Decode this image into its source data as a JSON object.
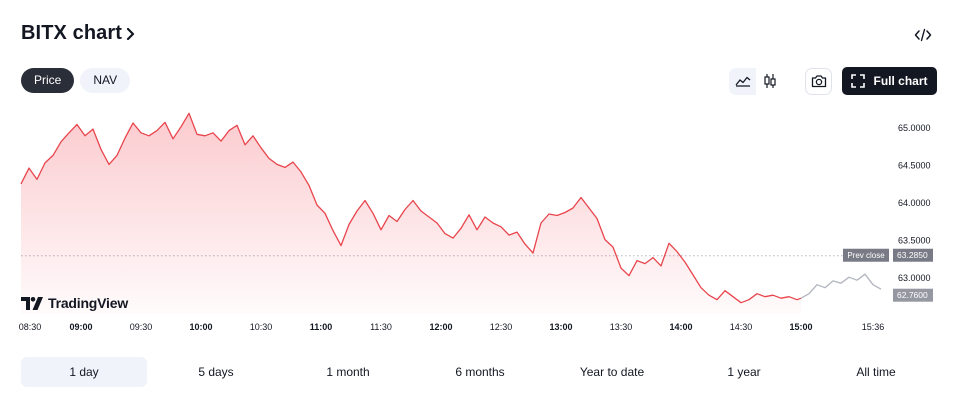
{
  "header": {
    "title": "BITX chart",
    "chevron_icon": "chevron-right-icon",
    "embed_icon": "code-embed-icon"
  },
  "tabs": [
    {
      "label": "Price",
      "active": true
    },
    {
      "label": "NAV",
      "active": false
    }
  ],
  "toolbar": {
    "area_chart_icon": "area-chart-icon",
    "candles_icon": "candlestick-icon",
    "snapshot_icon": "camera-icon",
    "full_chart_label": "Full chart",
    "full_chart_icon": "expand-icon"
  },
  "logo": {
    "text": "TradingView"
  },
  "ranges": [
    {
      "label": "1 day",
      "active": true
    },
    {
      "label": "5 days"
    },
    {
      "label": "1 month"
    },
    {
      "label": "6 months"
    },
    {
      "label": "Year to date"
    },
    {
      "label": "1 year"
    },
    {
      "label": "All time"
    }
  ],
  "chart_data": {
    "type": "area",
    "x_ticks": [
      "08:30",
      "09:00",
      "09:30",
      "10:00",
      "10:30",
      "11:00",
      "11:30",
      "12:00",
      "12:30",
      "13:00",
      "13:30",
      "14:00",
      "14:30",
      "15:00",
      "15:36"
    ],
    "x_ticks_bold": [
      "09:00",
      "10:00",
      "11:00",
      "12:00",
      "13:00",
      "14:00",
      "15:00"
    ],
    "y_ticks": [
      "65.0000",
      "64.5000",
      "64.0000",
      "63.5000",
      "63.0000"
    ],
    "ylim": [
      62.55,
      65.25
    ],
    "prev_close": {
      "label": "Prev close",
      "value": "63.2850"
    },
    "last_price": "62.7600",
    "colors": {
      "line": "#e8454c",
      "fill": "#f23645",
      "after_hours": "#b2b5be",
      "prev_close": "#787b86",
      "last_price": "#9598a1"
    },
    "series": [
      {
        "session": "regular",
        "x": [
          "08:30",
          "08:34",
          "08:38",
          "08:42",
          "08:46",
          "08:50",
          "08:54",
          "08:58",
          "09:02",
          "09:06",
          "09:10",
          "09:14",
          "09:18",
          "09:22",
          "09:26",
          "09:30",
          "09:34",
          "09:38",
          "09:42",
          "09:46",
          "09:50",
          "09:54",
          "09:58",
          "10:02",
          "10:06",
          "10:10",
          "10:14",
          "10:18",
          "10:22",
          "10:26",
          "10:30",
          "10:34",
          "10:38",
          "10:42",
          "10:46",
          "10:50",
          "10:54",
          "10:58",
          "11:02",
          "11:06",
          "11:10",
          "11:14",
          "11:18",
          "11:22",
          "11:26",
          "11:30",
          "11:34",
          "11:38",
          "11:42",
          "11:46",
          "11:50",
          "11:54",
          "11:58",
          "12:02",
          "12:06",
          "12:10",
          "12:14",
          "12:18",
          "12:22",
          "12:26",
          "12:30",
          "12:34",
          "12:38",
          "12:42",
          "12:46",
          "12:50",
          "12:54",
          "12:58",
          "13:02",
          "13:06",
          "13:10",
          "13:14",
          "13:18",
          "13:22",
          "13:26",
          "13:30",
          "13:34",
          "13:38",
          "13:42",
          "13:46",
          "13:50",
          "13:54",
          "13:58",
          "14:02",
          "14:06",
          "14:10",
          "14:14",
          "14:18",
          "14:22",
          "14:26",
          "14:30",
          "14:34",
          "14:38",
          "14:42",
          "14:46",
          "14:50",
          "14:54",
          "14:58",
          "15:00"
        ],
        "y": [
          64.24,
          64.45,
          64.3,
          64.52,
          64.62,
          64.8,
          64.92,
          65.03,
          64.88,
          64.97,
          64.7,
          64.5,
          64.62,
          64.85,
          65.05,
          64.92,
          64.88,
          64.95,
          65.06,
          64.84,
          65.0,
          65.18,
          64.9,
          64.88,
          64.92,
          64.81,
          64.95,
          65.02,
          64.76,
          64.88,
          64.72,
          64.58,
          64.5,
          64.46,
          64.53,
          64.4,
          64.22,
          63.96,
          63.85,
          63.62,
          63.42,
          63.7,
          63.88,
          64.02,
          63.85,
          63.63,
          63.82,
          63.74,
          63.9,
          64.02,
          63.88,
          63.8,
          63.72,
          63.58,
          63.52,
          63.65,
          63.83,
          63.63,
          63.8,
          63.72,
          63.67,
          63.56,
          63.6,
          63.44,
          63.32,
          63.72,
          63.84,
          63.82,
          63.86,
          63.92,
          64.06,
          63.92,
          63.78,
          63.5,
          63.4,
          63.12,
          63.02,
          63.22,
          63.18,
          63.26,
          63.15,
          63.45,
          63.34,
          63.2,
          63.03,
          62.86,
          62.76,
          62.7,
          62.82,
          62.74,
          62.66,
          62.7,
          62.78,
          62.74,
          62.76,
          62.72,
          62.74,
          62.7,
          62.72
        ]
      },
      {
        "session": "after_hours",
        "x": [
          "15:00",
          "15:04",
          "15:08",
          "15:12",
          "15:16",
          "15:20",
          "15:24",
          "15:28",
          "15:32",
          "15:36",
          "15:40"
        ],
        "y": [
          62.72,
          62.78,
          62.9,
          62.86,
          62.95,
          62.92,
          63.0,
          62.96,
          63.04,
          62.9,
          62.84
        ]
      }
    ]
  }
}
